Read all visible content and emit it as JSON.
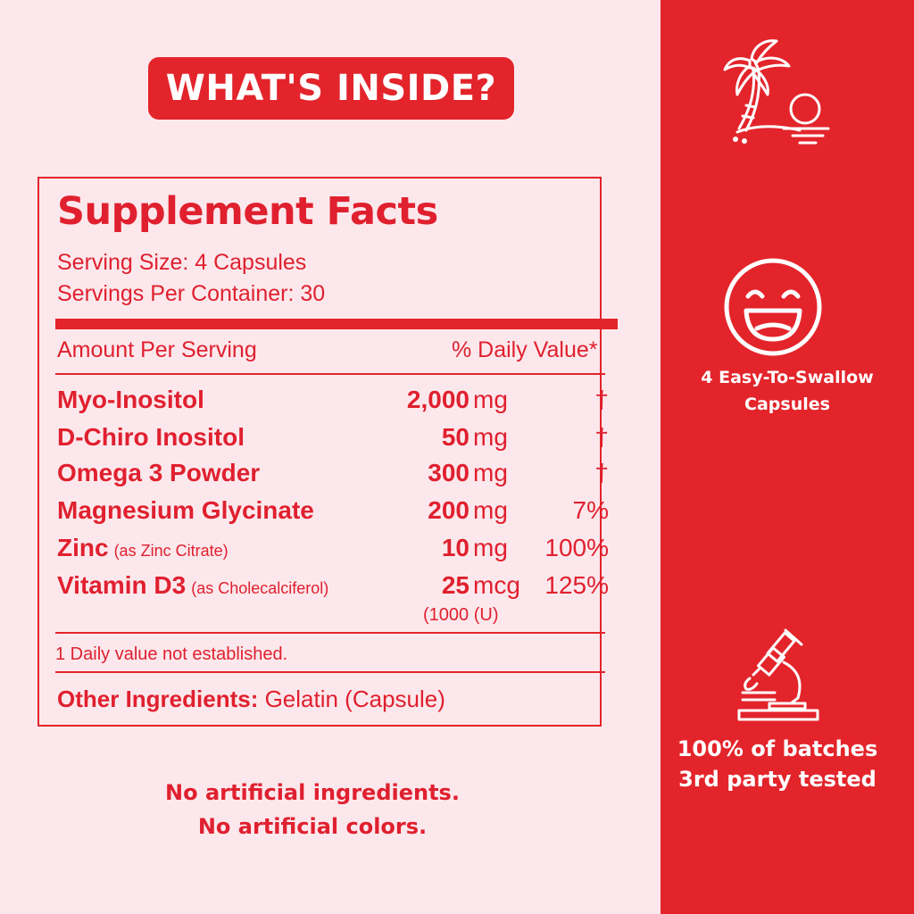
{
  "heading": "WHAT'S INSIDE?",
  "facts": {
    "title": "Supplement Facts",
    "serving_size": "Serving Size: 4 Capsules",
    "servings_per_container": "Servings Per Container: 30",
    "amount_header": "Amount Per Serving",
    "dv_header": "% Daily Value*",
    "rows": [
      {
        "name": "Myo-Inositol",
        "sub": "",
        "amount": "2,000",
        "unit": "mg",
        "dv": "†",
        "extra": ""
      },
      {
        "name": "D-Chiro Inositol",
        "sub": "",
        "amount": "50",
        "unit": "mg",
        "dv": "†",
        "extra": ""
      },
      {
        "name": "Omega 3 Powder",
        "sub": "",
        "amount": "300",
        "unit": "mg",
        "dv": "†",
        "extra": ""
      },
      {
        "name": "Magnesium Glycinate",
        "sub": "",
        "amount": "200",
        "unit": "mg",
        "dv": "7%",
        "extra": ""
      },
      {
        "name": "Zinc",
        "sub": "(as Zinc Citrate)",
        "amount": "10",
        "unit": "mg",
        "dv": "100%",
        "extra": ""
      },
      {
        "name": "Vitamin D3",
        "sub": "(as Cholecalciferol)",
        "amount": "25",
        "unit": "mcg",
        "dv": "125%",
        "extra": "(1000 (U)"
      }
    ],
    "footnote": "1 Daily value not established.",
    "other_label": "Other Ingredients:",
    "other_value": " Gelatin (Capsule)"
  },
  "claims": [
    "No artificial ingredients.",
    "No artificial colors."
  ],
  "features": [
    {
      "icon": "palm-tree-sunset-icon",
      "lines": []
    },
    {
      "icon": "smiley-face-icon",
      "lines": [
        "4 Easy-To-Swallow",
        "Capsules"
      ]
    },
    {
      "icon": "microscope-icon",
      "lines": [
        "100% of batches",
        "3rd party tested"
      ]
    }
  ],
  "colors": {
    "accent": "#e3242b",
    "background": "#fce8ec",
    "text_on_accent": "#ffffff"
  }
}
